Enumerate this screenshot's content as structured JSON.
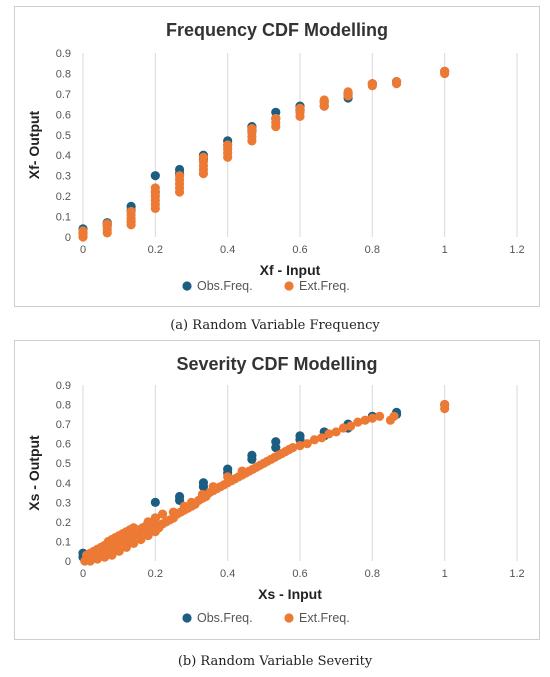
{
  "colors": {
    "observed": "#1b5e82",
    "expected": "#ec7a35"
  },
  "chart_data": [
    {
      "type": "scatter",
      "title": "Frequency CDF Modelling",
      "xlabel": "Xf - Input",
      "ylabel": "Xf- Output",
      "xlim": [
        0,
        1.2
      ],
      "ylim": [
        0,
        0.9
      ],
      "xticks": [
        "0",
        "0.2",
        "0.4",
        "0.6",
        "0.8",
        "1",
        "1.2"
      ],
      "yticks": [
        "0",
        "0.1",
        "0.2",
        "0.3",
        "0.4",
        "0.5",
        "0.6",
        "0.7",
        "0.8",
        "0.9"
      ],
      "grid": "vertical",
      "legend": "bottom",
      "caption": "(a) Random Variable Frequency",
      "series": [
        {
          "name": "Obs.Freq.",
          "color": "#1b5e82",
          "points": [
            [
              0,
              0.04
            ],
            [
              0,
              0.02
            ],
            [
              0.067,
              0.07
            ],
            [
              0.067,
              0.06
            ],
            [
              0.133,
              0.15
            ],
            [
              0.133,
              0.13
            ],
            [
              0.2,
              0.3
            ],
            [
              0.2,
              0.22
            ],
            [
              0.267,
              0.33
            ],
            [
              0.267,
              0.31
            ],
            [
              0.333,
              0.4
            ],
            [
              0.333,
              0.38
            ],
            [
              0.4,
              0.47
            ],
            [
              0.4,
              0.45
            ],
            [
              0.467,
              0.54
            ],
            [
              0.467,
              0.52
            ],
            [
              0.533,
              0.61
            ],
            [
              0.533,
              0.58
            ],
            [
              0.6,
              0.64
            ],
            [
              0.6,
              0.62
            ],
            [
              0.667,
              0.66
            ],
            [
              0.667,
              0.64
            ],
            [
              0.733,
              0.7
            ],
            [
              0.733,
              0.68
            ],
            [
              0.8,
              0.75
            ],
            [
              0.867,
              0.76
            ],
            [
              1.0,
              0.81
            ]
          ]
        },
        {
          "name": "Ext.Freq.",
          "color": "#ec7a35",
          "points": [
            [
              0,
              0.0
            ],
            [
              0,
              0.01
            ],
            [
              0,
              0.02
            ],
            [
              0,
              0.03
            ],
            [
              0.067,
              0.02
            ],
            [
              0.067,
              0.035
            ],
            [
              0.067,
              0.05
            ],
            [
              0.067,
              0.065
            ],
            [
              0.133,
              0.06
            ],
            [
              0.133,
              0.075
            ],
            [
              0.133,
              0.09
            ],
            [
              0.133,
              0.11
            ],
            [
              0.133,
              0.125
            ],
            [
              0.2,
              0.14
            ],
            [
              0.2,
              0.16
            ],
            [
              0.2,
              0.18
            ],
            [
              0.2,
              0.2
            ],
            [
              0.2,
              0.22
            ],
            [
              0.2,
              0.24
            ],
            [
              0.267,
              0.22
            ],
            [
              0.267,
              0.24
            ],
            [
              0.267,
              0.26
            ],
            [
              0.267,
              0.28
            ],
            [
              0.267,
              0.3
            ],
            [
              0.333,
              0.31
            ],
            [
              0.333,
              0.33
            ],
            [
              0.333,
              0.35
            ],
            [
              0.333,
              0.37
            ],
            [
              0.333,
              0.39
            ],
            [
              0.4,
              0.39
            ],
            [
              0.4,
              0.41
            ],
            [
              0.4,
              0.43
            ],
            [
              0.4,
              0.45
            ],
            [
              0.467,
              0.47
            ],
            [
              0.467,
              0.49
            ],
            [
              0.467,
              0.51
            ],
            [
              0.467,
              0.53
            ],
            [
              0.533,
              0.54
            ],
            [
              0.533,
              0.56
            ],
            [
              0.533,
              0.58
            ],
            [
              0.6,
              0.59
            ],
            [
              0.6,
              0.61
            ],
            [
              0.6,
              0.63
            ],
            [
              0.667,
              0.64
            ],
            [
              0.667,
              0.66
            ],
            [
              0.667,
              0.67
            ],
            [
              0.733,
              0.69
            ],
            [
              0.733,
              0.71
            ],
            [
              0.8,
              0.74
            ],
            [
              0.8,
              0.75
            ],
            [
              0.867,
              0.75
            ],
            [
              0.867,
              0.76
            ],
            [
              1.0,
              0.8
            ],
            [
              1.0,
              0.81
            ]
          ]
        }
      ]
    },
    {
      "type": "scatter",
      "title": "Severity CDF Modelling",
      "xlabel": "Xs - Input",
      "ylabel": "Xs - Output",
      "xlim": [
        0,
        1.2
      ],
      "ylim": [
        0,
        0.9
      ],
      "xticks": [
        "0",
        "0.2",
        "0.4",
        "0.6",
        "0.8",
        "1",
        "1.2"
      ],
      "yticks": [
        "0",
        "0.1",
        "0.2",
        "0.3",
        "0.4",
        "0.5",
        "0.6",
        "0.7",
        "0.8",
        "0.9"
      ],
      "grid": "vertical",
      "legend": "bottom",
      "caption": "(b) Random Variable Severity",
      "series": [
        {
          "name": "Obs.Freq.",
          "color": "#1b5e82",
          "points": [
            [
              0,
              0.04
            ],
            [
              0,
              0.02
            ],
            [
              0.067,
              0.07
            ],
            [
              0.067,
              0.06
            ],
            [
              0.133,
              0.15
            ],
            [
              0.133,
              0.13
            ],
            [
              0.2,
              0.3
            ],
            [
              0.2,
              0.22
            ],
            [
              0.267,
              0.33
            ],
            [
              0.267,
              0.31
            ],
            [
              0.333,
              0.4
            ],
            [
              0.333,
              0.38
            ],
            [
              0.4,
              0.47
            ],
            [
              0.4,
              0.45
            ],
            [
              0.467,
              0.54
            ],
            [
              0.467,
              0.52
            ],
            [
              0.533,
              0.61
            ],
            [
              0.533,
              0.58
            ],
            [
              0.6,
              0.64
            ],
            [
              0.6,
              0.62
            ],
            [
              0.667,
              0.66
            ],
            [
              0.667,
              0.64
            ],
            [
              0.733,
              0.7
            ],
            [
              0.733,
              0.68
            ],
            [
              0.8,
              0.74
            ],
            [
              0.867,
              0.76
            ],
            [
              0.867,
              0.75
            ],
            [
              1.0,
              0.8
            ]
          ]
        },
        {
          "name": "Ext.Freq.",
          "color": "#ec7a35",
          "points": [
            [
              0.005,
              0.0
            ],
            [
              0.01,
              0.01
            ],
            [
              0.015,
              0.02
            ],
            [
              0.02,
              0.01
            ],
            [
              0.025,
              0.03
            ],
            [
              0.03,
              0.02
            ],
            [
              0.035,
              0.04
            ],
            [
              0.04,
              0.03
            ],
            [
              0.045,
              0.05
            ],
            [
              0.05,
              0.04
            ],
            [
              0.055,
              0.06
            ],
            [
              0.06,
              0.05
            ],
            [
              0.065,
              0.07
            ],
            [
              0.07,
              0.06
            ],
            [
              0.075,
              0.08
            ],
            [
              0.08,
              0.07
            ],
            [
              0.085,
              0.09
            ],
            [
              0.09,
              0.08
            ],
            [
              0.095,
              0.1
            ],
            [
              0.1,
              0.09
            ],
            [
              0.105,
              0.11
            ],
            [
              0.11,
              0.1
            ],
            [
              0.115,
              0.12
            ],
            [
              0.12,
              0.11
            ],
            [
              0.125,
              0.13
            ],
            [
              0.13,
              0.12
            ],
            [
              0.135,
              0.14
            ],
            [
              0.14,
              0.13
            ],
            [
              0.145,
              0.15
            ],
            [
              0.15,
              0.14
            ],
            [
              0.155,
              0.16
            ],
            [
              0.16,
              0.15
            ],
            [
              0.165,
              0.17
            ],
            [
              0.17,
              0.16
            ],
            [
              0.175,
              0.18
            ],
            [
              0.18,
              0.17
            ],
            [
              0.185,
              0.19
            ],
            [
              0.19,
              0.18
            ],
            [
              0.195,
              0.2
            ],
            [
              0.2,
              0.19
            ],
            [
              0.01,
              0.03
            ],
            [
              0.02,
              0.04
            ],
            [
              0.03,
              0.05
            ],
            [
              0.04,
              0.06
            ],
            [
              0.05,
              0.07
            ],
            [
              0.06,
              0.08
            ],
            [
              0.07,
              0.1
            ],
            [
              0.08,
              0.11
            ],
            [
              0.09,
              0.12
            ],
            [
              0.1,
              0.13
            ],
            [
              0.11,
              0.14
            ],
            [
              0.12,
              0.15
            ],
            [
              0.13,
              0.16
            ],
            [
              0.14,
              0.17
            ],
            [
              0.02,
              0.0
            ],
            [
              0.04,
              0.01
            ],
            [
              0.06,
              0.02
            ],
            [
              0.08,
              0.03
            ],
            [
              0.1,
              0.05
            ],
            [
              0.12,
              0.07
            ],
            [
              0.14,
              0.09
            ],
            [
              0.16,
              0.11
            ],
            [
              0.18,
              0.13
            ],
            [
              0.2,
              0.15
            ],
            [
              0.21,
              0.17
            ],
            [
              0.22,
              0.19
            ],
            [
              0.23,
              0.2
            ],
            [
              0.24,
              0.21
            ],
            [
              0.25,
              0.22
            ],
            [
              0.26,
              0.24
            ],
            [
              0.27,
              0.25
            ],
            [
              0.28,
              0.26
            ],
            [
              0.29,
              0.27
            ],
            [
              0.3,
              0.28
            ],
            [
              0.31,
              0.29
            ],
            [
              0.32,
              0.31
            ],
            [
              0.33,
              0.32
            ],
            [
              0.34,
              0.33
            ],
            [
              0.35,
              0.35
            ],
            [
              0.36,
              0.36
            ],
            [
              0.37,
              0.37
            ],
            [
              0.38,
              0.38
            ],
            [
              0.39,
              0.39
            ],
            [
              0.4,
              0.4
            ],
            [
              0.41,
              0.41
            ],
            [
              0.42,
              0.42
            ],
            [
              0.43,
              0.43
            ],
            [
              0.44,
              0.44
            ],
            [
              0.45,
              0.45
            ],
            [
              0.46,
              0.46
            ],
            [
              0.47,
              0.47
            ],
            [
              0.48,
              0.48
            ],
            [
              0.49,
              0.49
            ],
            [
              0.5,
              0.5
            ],
            [
              0.51,
              0.51
            ],
            [
              0.52,
              0.52
            ],
            [
              0.53,
              0.53
            ],
            [
              0.54,
              0.54
            ],
            [
              0.55,
              0.55
            ],
            [
              0.56,
              0.56
            ],
            [
              0.57,
              0.57
            ],
            [
              0.58,
              0.58
            ],
            [
              0.6,
              0.59
            ],
            [
              0.62,
              0.6
            ],
            [
              0.64,
              0.62
            ],
            [
              0.66,
              0.63
            ],
            [
              0.68,
              0.65
            ],
            [
              0.7,
              0.66
            ],
            [
              0.72,
              0.68
            ],
            [
              0.74,
              0.69
            ],
            [
              0.76,
              0.71
            ],
            [
              0.78,
              0.72
            ],
            [
              0.8,
              0.73
            ],
            [
              0.82,
              0.74
            ],
            [
              0.85,
              0.72
            ],
            [
              0.86,
              0.74
            ],
            [
              1.0,
              0.78
            ],
            [
              1.0,
              0.8
            ],
            [
              0.18,
              0.2
            ],
            [
              0.2,
              0.22
            ],
            [
              0.22,
              0.24
            ],
            [
              0.25,
              0.25
            ],
            [
              0.28,
              0.28
            ],
            [
              0.3,
              0.3
            ],
            [
              0.33,
              0.34
            ],
            [
              0.36,
              0.38
            ],
            [
              0.4,
              0.43
            ],
            [
              0.44,
              0.46
            ]
          ]
        }
      ]
    }
  ]
}
